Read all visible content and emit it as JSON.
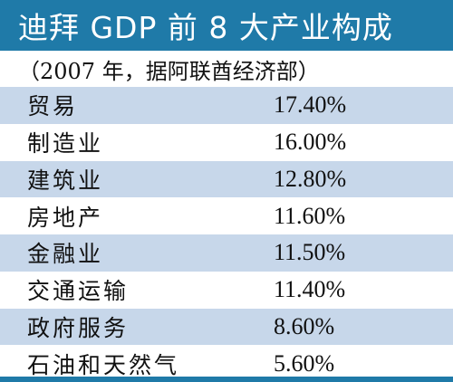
{
  "colors": {
    "header_bg": "#1f7aa8",
    "row_shade": "#c7d7ea"
  },
  "chart_data": {
    "type": "table",
    "title": "迪拜 GDP 前 8 大产业构成",
    "subtitle": "（2007 年，据阿联酋经济部）",
    "categories": [
      "贸易",
      "制造业",
      "建筑业",
      "房地产",
      "金融业",
      "交通运输",
      "政府服务",
      "石油和天然气"
    ],
    "values": [
      17.4,
      16.0,
      12.8,
      11.6,
      11.5,
      11.4,
      8.6,
      5.6
    ],
    "value_labels": [
      "17.40%",
      "16.00%",
      "12.80%",
      "11.60%",
      "11.50%",
      "11.40%",
      "8.60%",
      "5.60%"
    ]
  }
}
